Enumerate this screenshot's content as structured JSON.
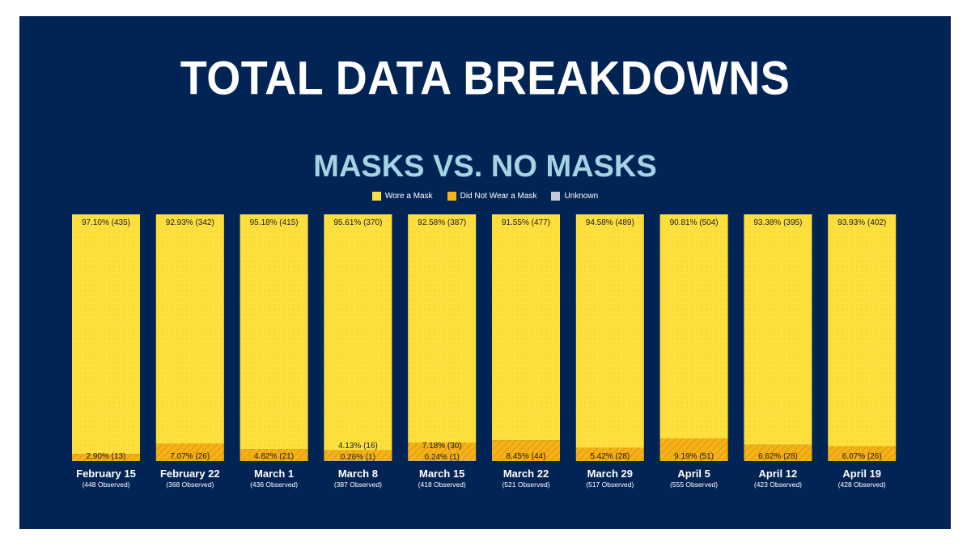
{
  "title": "TOTAL DATA BREAKDOWNS",
  "subtitle": "MASKS VS. NO MASKS",
  "colors": {
    "background": "#022454",
    "wore": "#fde03e",
    "did_not": "#f6b319",
    "unknown": "#c4cbd6",
    "title": "#ffffff",
    "subtitle": "#a4d4e4"
  },
  "legend": [
    {
      "label": "Wore a Mask",
      "color": "#fde03e"
    },
    {
      "label": "Did Not Wear a Mask",
      "color": "#f6b319"
    },
    {
      "label": "Unknown",
      "color": "#c4cbd6"
    }
  ],
  "chart_data": {
    "type": "bar",
    "stacked": true,
    "normalized": true,
    "categories": [
      "February 15",
      "February 22",
      "March 1",
      "March 8",
      "March 15",
      "March 22",
      "March 29",
      "April 5",
      "April 12",
      "April 19"
    ],
    "observed": [
      "(448 Observed)",
      "(368 Observed)",
      "(436 Observed)",
      "(387 Observed)",
      "(418 Observed)",
      "(521 Observed)",
      "(517 Observed)",
      "(555 Observed)",
      "(423 Observed)",
      "(428 Observed)"
    ],
    "series": [
      {
        "name": "Wore a Mask",
        "values": [
          97.1,
          92.93,
          95.18,
          95.61,
          92.58,
          91.55,
          94.58,
          90.81,
          93.38,
          93.93
        ],
        "counts": [
          435,
          342,
          415,
          370,
          387,
          477,
          489,
          504,
          395,
          402
        ],
        "labels": [
          "97.10% (435)",
          "92.93% (342)",
          "95.18% (415)",
          "95.61% (370)",
          "92.58% (387)",
          "91.55% (477)",
          "94.58% (489)",
          "90.81% (504)",
          "93.38% (395)",
          "93.93% (402)"
        ]
      },
      {
        "name": "Did Not Wear a Mask",
        "values": [
          2.9,
          7.07,
          4.82,
          4.13,
          7.18,
          8.45,
          5.42,
          9.19,
          6.62,
          6.07
        ],
        "counts": [
          13,
          26,
          21,
          16,
          30,
          44,
          28,
          51,
          28,
          26
        ],
        "labels": [
          "2.90% (13)",
          "7.07% (26)",
          "4.82% (21)",
          "4.13% (16)",
          "7.18% (30)",
          "8.45% (44)",
          "5.42% (28)",
          "9.19% (51)",
          "6.62% (28)",
          "6.07% (26)"
        ]
      },
      {
        "name": "Unknown",
        "values": [
          0,
          0,
          0,
          0.26,
          0.24,
          0,
          0,
          0,
          0,
          0
        ],
        "counts": [
          0,
          0,
          0,
          1,
          1,
          0,
          0,
          0,
          0,
          0
        ],
        "labels": [
          "",
          "",
          "",
          "0.26% (1)",
          "0.24% (1)",
          "",
          "",
          "",
          "",
          ""
        ]
      }
    ],
    "ylim": [
      0,
      100
    ]
  }
}
